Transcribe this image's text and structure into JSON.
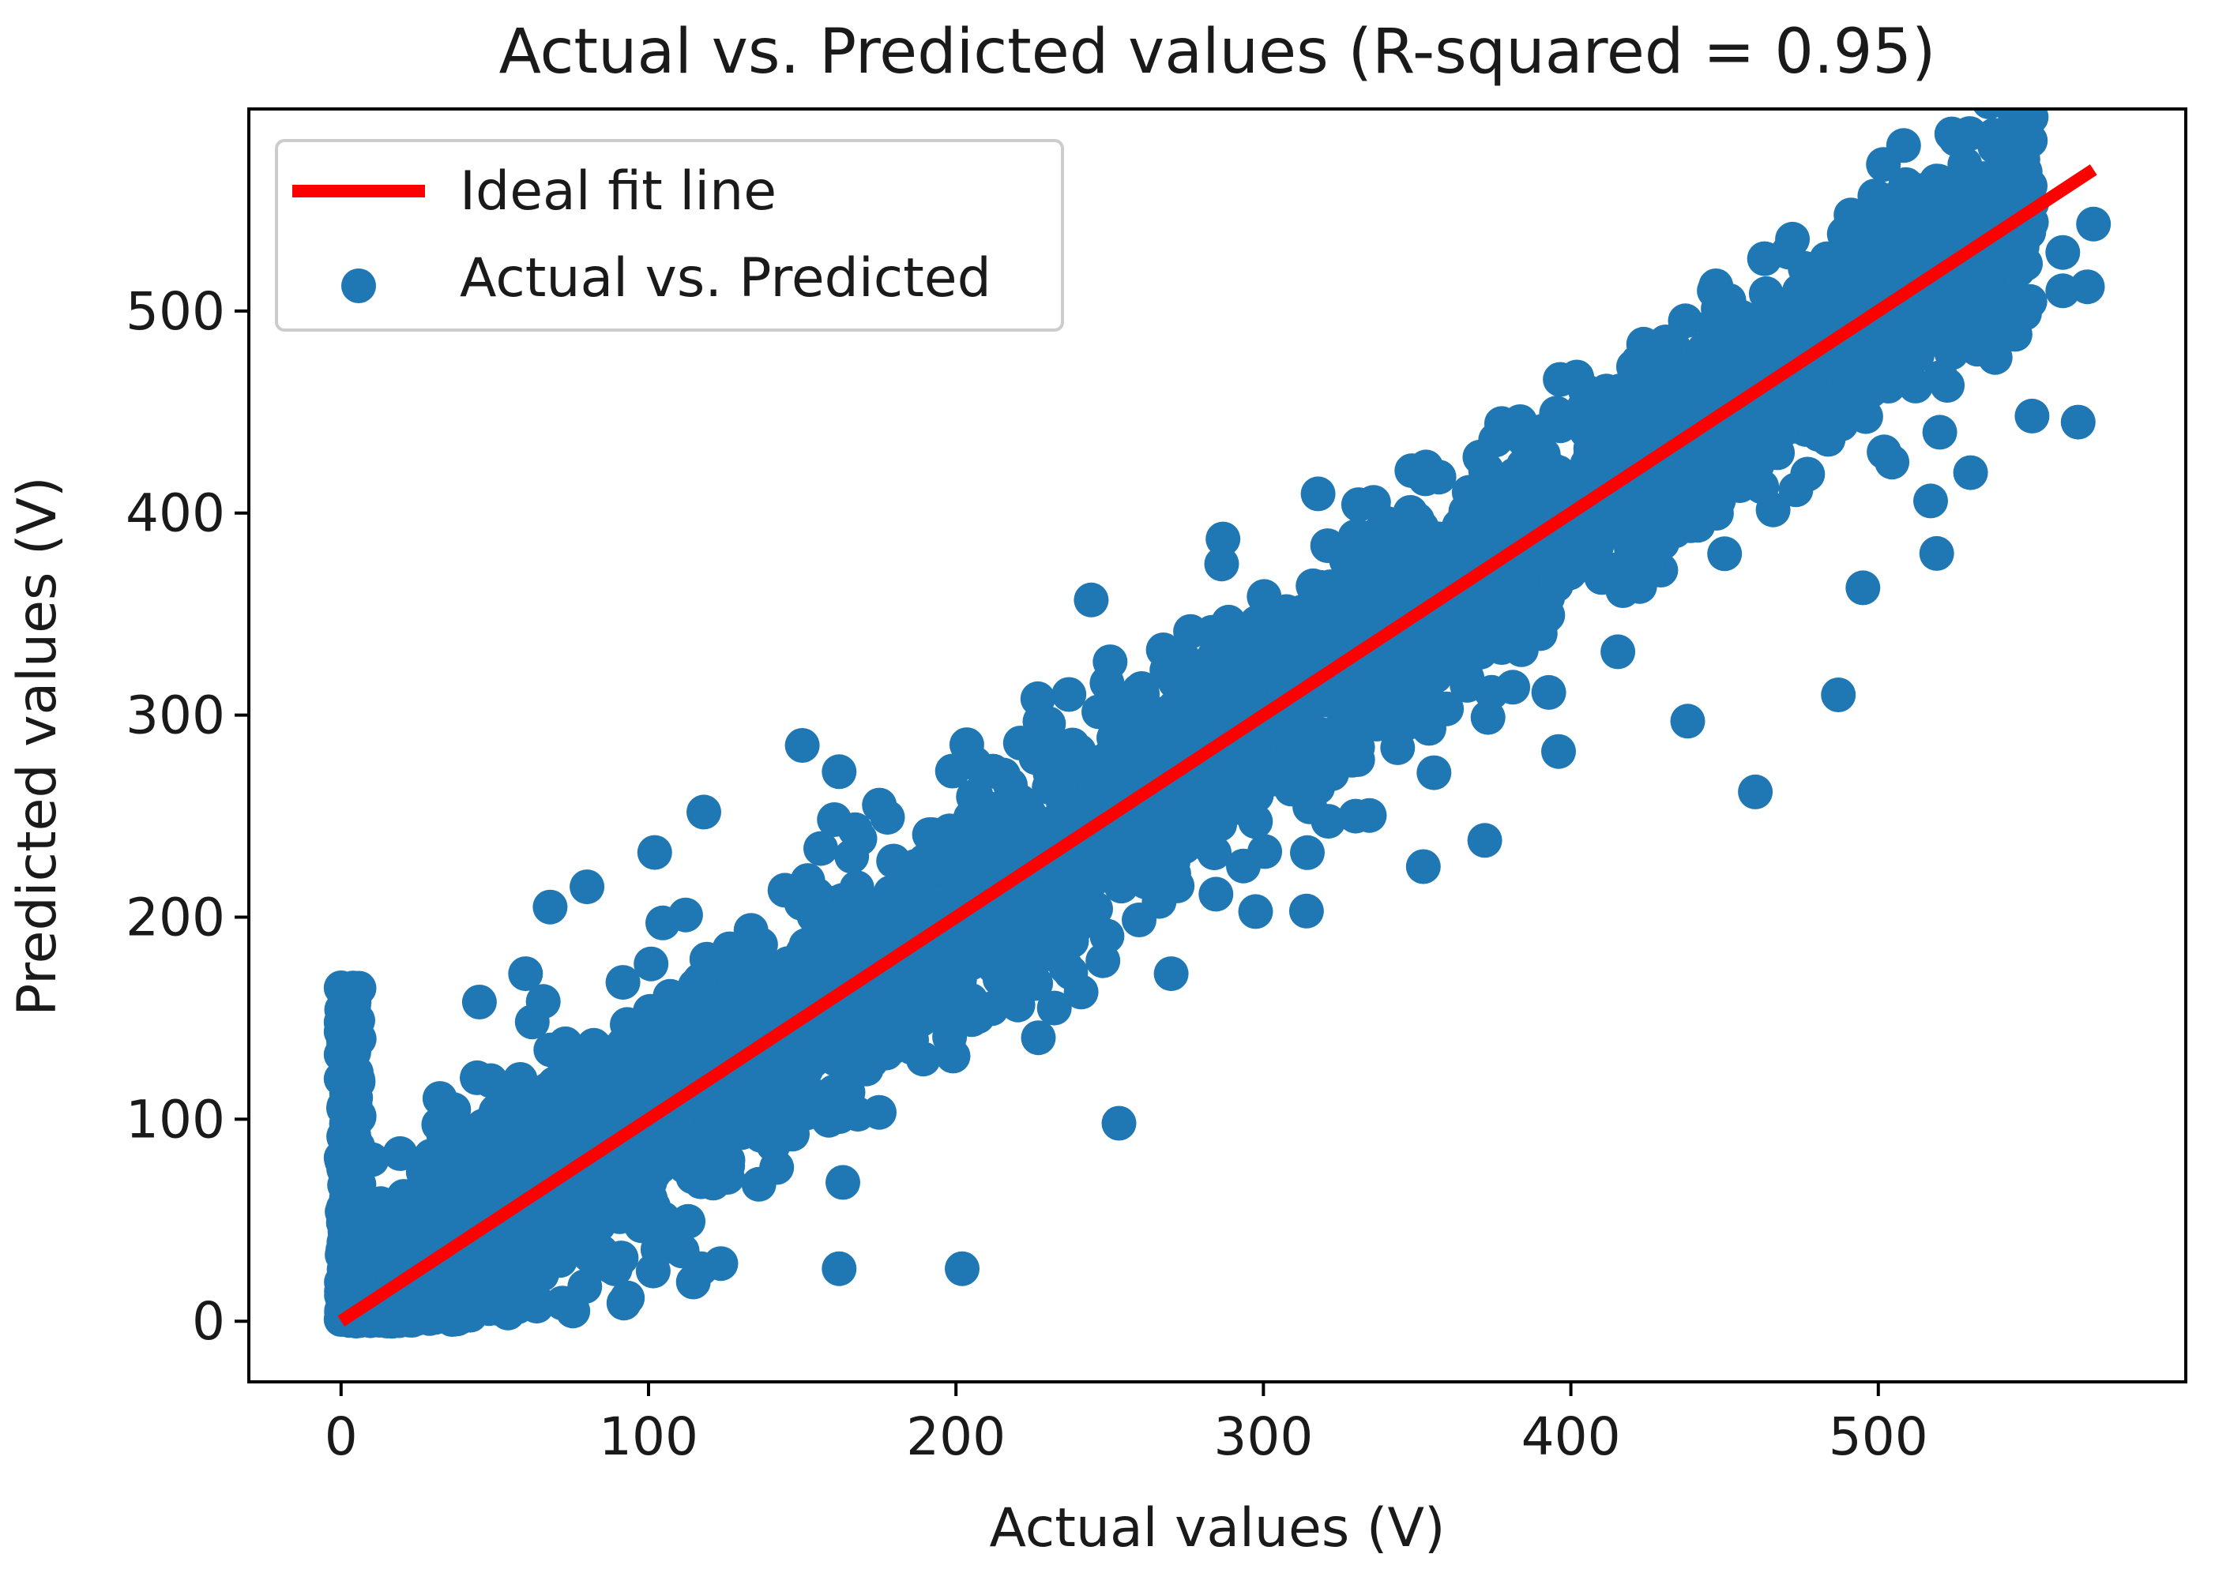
{
  "chart_data": {
    "type": "scatter",
    "title": "Actual vs. Predicted values (R-squared = 0.95)",
    "xlabel": "Actual values (V)",
    "ylabel": "Predicted values (V)",
    "xlim": [
      -30,
      600
    ],
    "ylim": [
      -30,
      600
    ],
    "xticks": [
      0,
      100,
      200,
      300,
      400,
      500
    ],
    "yticks": [
      0,
      100,
      200,
      300,
      400,
      500
    ],
    "grid": false,
    "legend_position": "top-left",
    "colors": {
      "points": "#1f77b4",
      "fit_line": "#ff0000"
    },
    "legend": [
      "Ideal fit line",
      "Actual vs. Predicted"
    ],
    "series": [
      {
        "name": "Ideal fit line",
        "type": "line",
        "x": [
          0,
          570
        ],
        "y": [
          0,
          570
        ]
      },
      {
        "name": "Actual vs. Predicted",
        "type": "scatter",
        "outliers": [
          [
            244,
            357
          ],
          [
            150,
            285
          ],
          [
            162,
            272
          ],
          [
            118,
            252
          ],
          [
            102,
            232
          ],
          [
            80,
            215
          ],
          [
            68,
            205
          ],
          [
            45,
            158
          ],
          [
            60,
            172
          ],
          [
            117,
            26
          ],
          [
            162,
            26
          ],
          [
            202,
            26
          ],
          [
            92,
            9
          ],
          [
            64,
            9
          ],
          [
            72,
            9
          ],
          [
            42,
            9
          ],
          [
            253,
            98
          ],
          [
            314,
            203
          ],
          [
            270,
            172
          ],
          [
            232,
            155
          ],
          [
            166,
            105
          ],
          [
            127,
            125
          ],
          [
            460,
            262
          ],
          [
            438,
            297
          ],
          [
            487,
            310
          ],
          [
            495,
            363
          ],
          [
            519,
            380
          ],
          [
            517,
            406
          ],
          [
            530,
            420
          ],
          [
            550,
            448
          ],
          [
            520,
            440
          ],
          [
            565,
            445
          ],
          [
            538,
            477
          ],
          [
            560,
            510
          ],
          [
            568,
            512
          ],
          [
            570,
            543
          ],
          [
            560,
            529
          ],
          [
            541,
            536
          ],
          [
            525,
            495
          ],
          [
            532,
            505
          ],
          [
            396,
            282
          ],
          [
            352,
            225
          ],
          [
            372,
            238
          ],
          [
            330,
            250
          ],
          [
            0,
            165
          ],
          [
            0,
            148
          ],
          [
            0,
            132
          ],
          [
            0,
            120
          ],
          [
            5,
            70
          ],
          [
            10,
            80
          ],
          [
            2,
            95
          ]
        ]
      }
    ]
  }
}
